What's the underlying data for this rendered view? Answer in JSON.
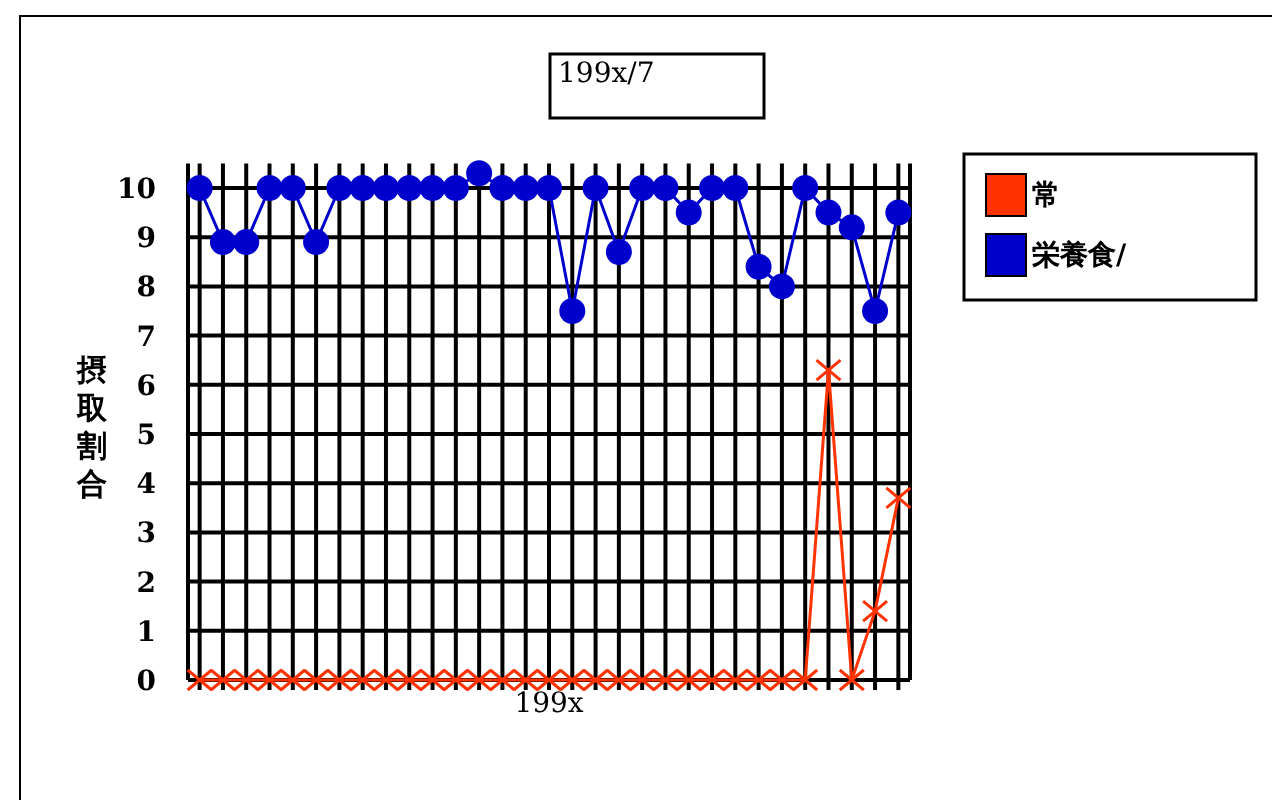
{
  "chart_data": {
    "type": "line",
    "title": "199x/7",
    "xlabel": "199x",
    "ylabel": "摂取割合",
    "categories": [
      null,
      null,
      null,
      null,
      null,
      null,
      null,
      null,
      null,
      null,
      null,
      null,
      null,
      null,
      null,
      null,
      null,
      null,
      null,
      null,
      null,
      null,
      null,
      null,
      null,
      null,
      null,
      null,
      null,
      null,
      null
    ],
    "series": [
      {
        "name": "常",
        "color": "#ff3300",
        "marker": "cross",
        "values": [
          0,
          0,
          0,
          0,
          0,
          0,
          0,
          0,
          0,
          0,
          0,
          0,
          0,
          0,
          0,
          0,
          0,
          0,
          0,
          0,
          0,
          0,
          0,
          0,
          0,
          0,
          0,
          6.3,
          0,
          1.4,
          3.7
        ]
      },
      {
        "name": "栄養食/",
        "color": "#0000cc",
        "marker": "circle",
        "values": [
          10,
          8.9,
          8.9,
          10,
          10,
          8.9,
          10,
          10,
          10,
          10,
          10,
          10,
          10.3,
          10,
          10,
          10,
          7.5,
          10,
          8.7,
          10,
          10,
          9.5,
          10,
          10,
          8.4,
          8,
          10,
          9.5,
          9.2,
          7.5,
          9.5
        ]
      }
    ],
    "ylim": [
      0,
      10.5
    ],
    "yticks": [
      0,
      1,
      2,
      3,
      4,
      5,
      6,
      7,
      8,
      9,
      10
    ],
    "grid": true,
    "legend": "top right",
    "tick_labels": "y"
  }
}
